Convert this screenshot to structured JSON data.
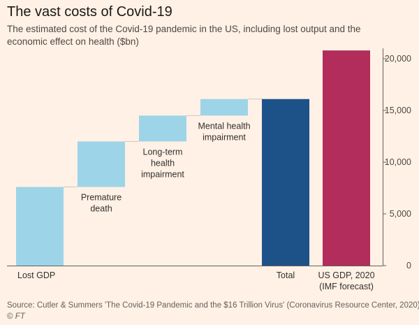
{
  "header": {
    "title": "The vast costs of Covid-19",
    "subtitle": "The estimated cost of the Covid-19 pandemic in the US, including lost output and the economic effect on health ($bn)"
  },
  "footer": {
    "source": "Source: Cutler & Summers 'The Covid-19 Pandemic and the $16 Trillion Virus' (Coronavirus Resource Center, 2020)",
    "copyright": "©",
    "brand": "FT"
  },
  "colors": {
    "background": "#fff1e5",
    "step": "#9dd4e8",
    "total": "#1d5289",
    "gdp": "#b22d5b",
    "axis": "#66605c",
    "connector": "#cfc6be"
  },
  "chart_data": {
    "type": "bar",
    "variant": "waterfall",
    "ylim": [
      0,
      21000
    ],
    "yticks": [
      0,
      5000,
      10000,
      15000,
      20000
    ],
    "ytick_labels": [
      "0",
      "5,000",
      "10,000",
      "15,000",
      "20,000"
    ],
    "y_axis_side": "right",
    "grid": false,
    "categories": [
      [
        "Lost GDP"
      ],
      [
        "Premature",
        "death"
      ],
      [
        "Long-term",
        "health",
        "impairment"
      ],
      [
        "Mental health",
        "impairment"
      ],
      [
        "Total"
      ],
      [
        "US GDP, 2020",
        "(IMF forecast)"
      ]
    ],
    "label_position": [
      "below",
      "below",
      "below",
      "below",
      "below",
      "below"
    ],
    "bars": [
      {
        "kind": "step",
        "start": 0,
        "end": 7600
      },
      {
        "kind": "step",
        "start": 7600,
        "end": 12000
      },
      {
        "kind": "step",
        "start": 12000,
        "end": 14500
      },
      {
        "kind": "step",
        "start": 14500,
        "end": 16100
      },
      {
        "kind": "total",
        "start": 0,
        "end": 16100
      },
      {
        "kind": "gdp",
        "start": 0,
        "end": 20800
      }
    ]
  }
}
